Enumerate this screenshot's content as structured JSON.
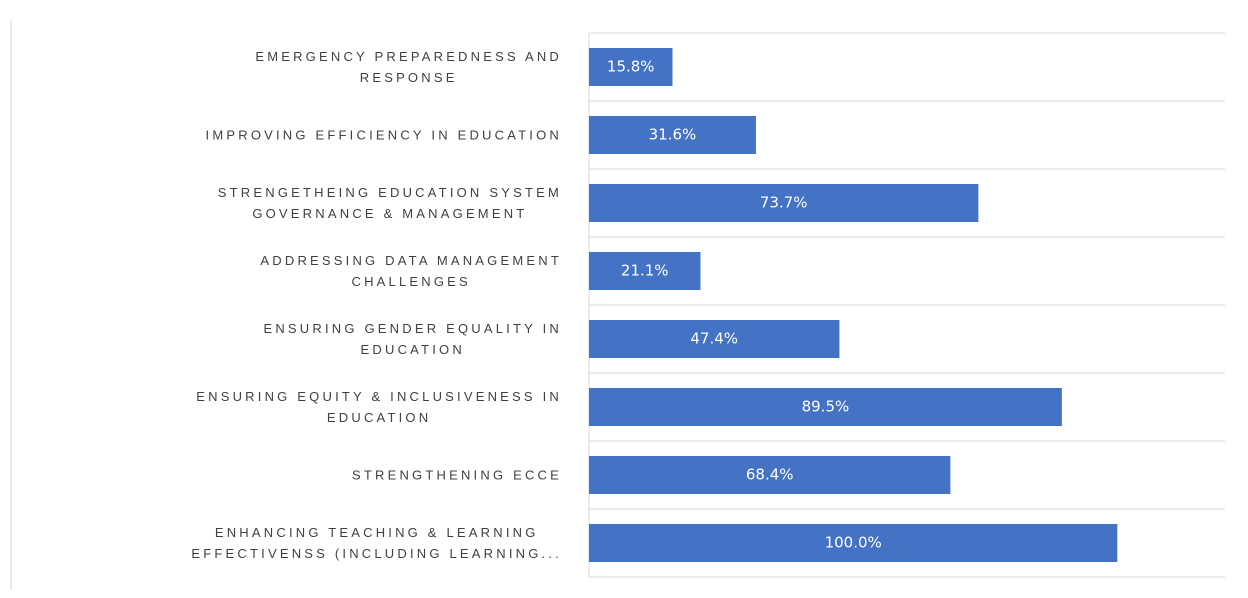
{
  "chart_data": {
    "type": "barh",
    "categories": [
      "EMERGENCY PREPAREDNESS AND\nRESPONSE",
      "IMPROVING EFFICIENCY IN EDUCATION",
      "STRENGETHEING EDUCATION SYSTEM\nGOVERNANCE & MANAGEMENT",
      "ADDRESSING DATA MANAGEMENT\nCHALLENGES",
      "ENSURING GENDER EQUALITY IN\nEDUCATION",
      "ENSURING EQUITY & INCLUSIVENESS IN\nEDUCATION",
      "STRENGTHENING ECCE",
      "ENHANCING TEACHING & LEARNING\nEFFECTIVENSS (INCLUDING LEARNING..."
    ],
    "values": [
      15.8,
      31.6,
      73.7,
      21.1,
      47.4,
      89.5,
      68.4,
      100.0
    ],
    "value_labels": [
      "15.8%",
      "31.6%",
      "73.7%",
      "21.1%",
      "47.4%",
      "89.5%",
      "68.4%",
      "100.0%"
    ],
    "color": "#4472c4",
    "xlim": [
      0,
      120
    ]
  }
}
